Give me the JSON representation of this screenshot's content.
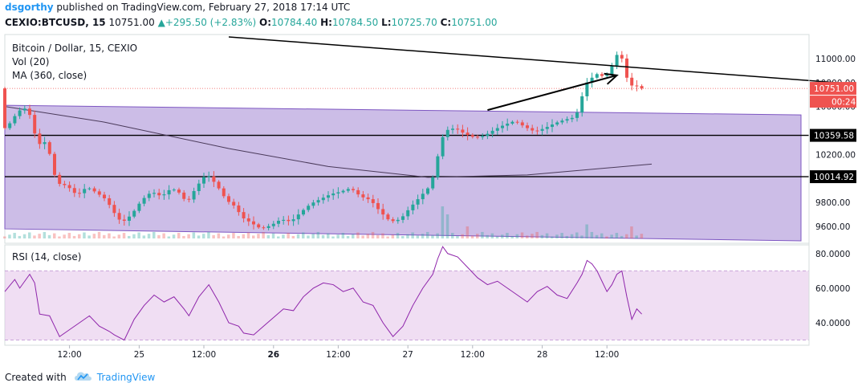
{
  "header": {
    "author": "dsgorthy",
    "published": "published on TradingView.com, February 27, 2018 17:14 UTC",
    "symbol": "CEXIO:BTCUSD, 15",
    "last": "10751.00",
    "change_arrow": "▲",
    "change": "+295.50 (+2.83%)",
    "o_label": "O:",
    "o": "10784.40",
    "h_label": "H:",
    "h": "10784.50",
    "l_label": "L:",
    "l": "10725.70",
    "c_label": "C:",
    "c": "10751.00"
  },
  "legend": {
    "main": "Bitcoin / Dollar, 15, CEXIO",
    "vol": "Vol (20)",
    "ma": "MA (360, close)",
    "rsi": "RSI (14, close)"
  },
  "footer": {
    "created_with": "Created with",
    "brand": "TradingView",
    "logo_icon": "tradingview-cloud-icon"
  },
  "colors": {
    "up": "#26a69a",
    "down": "#ef5350",
    "channel_fill": "#9575cd",
    "rsi_fill": "#e1bee7",
    "author": "#2196f3",
    "last_price_tag": "#ef5350"
  },
  "chart_data": {
    "type": "candlestick",
    "main_pane": {
      "y_ticks": [
        "11000.00",
        "10800.00",
        "10600.00",
        "10200.00",
        "9800.00",
        "9600.00"
      ],
      "y_range": [
        9460,
        11200
      ],
      "price_tags": [
        {
          "value": 10751.0,
          "label": "10751.00",
          "style": "last"
        },
        {
          "label": "00:24",
          "style": "countdown"
        },
        {
          "value": 10359.58,
          "label": "10359.58",
          "style": "level"
        },
        {
          "value": 10014.92,
          "label": "10014.92",
          "style": "level"
        }
      ],
      "horizontal_levels": [
        10359.58,
        10014.92
      ],
      "price_path": [
        [
          0,
          10400
        ],
        [
          2,
          10480
        ],
        [
          3,
          10560
        ],
        [
          5,
          10590
        ],
        [
          6,
          10470
        ],
        [
          7,
          10280
        ],
        [
          9,
          10310
        ],
        [
          10,
          10100
        ],
        [
          11,
          9960
        ],
        [
          13,
          9940
        ],
        [
          15,
          9860
        ],
        [
          17,
          9930
        ],
        [
          19,
          9880
        ],
        [
          21,
          9820
        ],
        [
          22,
          9740
        ],
        [
          24,
          9630
        ],
        [
          26,
          9700
        ],
        [
          28,
          9820
        ],
        [
          30,
          9890
        ],
        [
          32,
          9850
        ],
        [
          34,
          9920
        ],
        [
          36,
          9870
        ],
        [
          37,
          9790
        ],
        [
          39,
          9930
        ],
        [
          41,
          10040
        ],
        [
          43,
          9950
        ],
        [
          45,
          9820
        ],
        [
          47,
          9760
        ],
        [
          48,
          9680
        ],
        [
          50,
          9630
        ],
        [
          52,
          9580
        ],
        [
          54,
          9610
        ],
        [
          56,
          9660
        ],
        [
          58,
          9640
        ],
        [
          60,
          9720
        ],
        [
          62,
          9790
        ],
        [
          64,
          9830
        ],
        [
          66,
          9870
        ],
        [
          68,
          9890
        ],
        [
          70,
          9920
        ],
        [
          72,
          9850
        ],
        [
          74,
          9820
        ],
        [
          76,
          9720
        ],
        [
          78,
          9640
        ],
        [
          80,
          9660
        ],
        [
          82,
          9760
        ],
        [
          84,
          9850
        ],
        [
          86,
          9940
        ],
        [
          87,
          10080
        ],
        [
          88,
          10290
        ],
        [
          89,
          10400
        ],
        [
          91,
          10420
        ],
        [
          93,
          10370
        ],
        [
          95,
          10340
        ],
        [
          97,
          10360
        ],
        [
          99,
          10410
        ],
        [
          101,
          10450
        ],
        [
          103,
          10480
        ],
        [
          105,
          10430
        ],
        [
          107,
          10390
        ],
        [
          109,
          10420
        ],
        [
          111,
          10460
        ],
        [
          113,
          10490
        ],
        [
          115,
          10510
        ],
        [
          116,
          10590
        ],
        [
          117,
          10780
        ],
        [
          118,
          10820
        ],
        [
          119,
          10860
        ],
        [
          120,
          10880
        ],
        [
          121,
          10830
        ],
        [
          122,
          10900
        ],
        [
          123,
          10980
        ],
        [
          124,
          11080
        ],
        [
          125,
          10920
        ],
        [
          126,
          10760
        ],
        [
          127,
          10790
        ],
        [
          128,
          10751
        ]
      ],
      "channel": {
        "upper": [
          [
            0,
            10610
          ],
          [
            160,
            10530
          ]
        ],
        "lower": [
          [
            0,
            9580
          ],
          [
            160,
            9480
          ]
        ]
      },
      "ma_360": [
        [
          0,
          10600
        ],
        [
          20,
          10470
        ],
        [
          45,
          10250
        ],
        [
          65,
          10100
        ],
        [
          85,
          10010
        ],
        [
          105,
          10030
        ],
        [
          130,
          10120
        ]
      ],
      "trendlines": [
        {
          "from": [
            45,
            11180
          ],
          "to": [
            170,
            10790
          ]
        },
        {
          "from": [
            97,
            10570
          ],
          "to": [
            123,
            10860
          ]
        }
      ],
      "volume_spikes": [
        [
          88,
          0.8
        ],
        [
          89,
          0.6
        ],
        [
          93,
          0.3
        ],
        [
          117,
          0.35
        ],
        [
          126,
          0.3
        ]
      ]
    },
    "rsi_pane": {
      "y_ticks": [
        "80.0000",
        "60.0000",
        "40.0000"
      ],
      "y_range": [
        27,
        85
      ],
      "band": [
        30,
        70
      ],
      "series": [
        [
          0,
          58
        ],
        [
          2,
          65
        ],
        [
          3,
          60
        ],
        [
          5,
          68
        ],
        [
          6,
          63
        ],
        [
          7,
          45
        ],
        [
          9,
          44
        ],
        [
          10,
          38
        ],
        [
          11,
          32
        ],
        [
          13,
          36
        ],
        [
          15,
          40
        ],
        [
          17,
          44
        ],
        [
          19,
          38
        ],
        [
          21,
          35
        ],
        [
          22,
          33
        ],
        [
          24,
          30
        ],
        [
          26,
          42
        ],
        [
          28,
          50
        ],
        [
          30,
          56
        ],
        [
          32,
          52
        ],
        [
          34,
          55
        ],
        [
          36,
          48
        ],
        [
          37,
          44
        ],
        [
          39,
          55
        ],
        [
          41,
          62
        ],
        [
          43,
          52
        ],
        [
          45,
          40
        ],
        [
          47,
          38
        ],
        [
          48,
          34
        ],
        [
          50,
          33
        ],
        [
          52,
          38
        ],
        [
          54,
          43
        ],
        [
          56,
          48
        ],
        [
          58,
          47
        ],
        [
          60,
          55
        ],
        [
          62,
          60
        ],
        [
          64,
          63
        ],
        [
          66,
          62
        ],
        [
          68,
          58
        ],
        [
          70,
          60
        ],
        [
          72,
          52
        ],
        [
          74,
          50
        ],
        [
          76,
          40
        ],
        [
          78,
          32
        ],
        [
          80,
          38
        ],
        [
          82,
          50
        ],
        [
          84,
          60
        ],
        [
          86,
          68
        ],
        [
          87,
          77
        ],
        [
          88,
          84
        ],
        [
          89,
          80
        ],
        [
          91,
          78
        ],
        [
          93,
          72
        ],
        [
          95,
          66
        ],
        [
          97,
          62
        ],
        [
          99,
          64
        ],
        [
          101,
          60
        ],
        [
          103,
          56
        ],
        [
          105,
          52
        ],
        [
          107,
          58
        ],
        [
          109,
          61
        ],
        [
          111,
          56
        ],
        [
          113,
          54
        ],
        [
          115,
          63
        ],
        [
          116,
          68
        ],
        [
          117,
          76
        ],
        [
          118,
          74
        ],
        [
          119,
          70
        ],
        [
          120,
          64
        ],
        [
          121,
          58
        ],
        [
          122,
          62
        ],
        [
          123,
          68
        ],
        [
          124,
          70
        ],
        [
          125,
          55
        ],
        [
          126,
          42
        ],
        [
          127,
          48
        ],
        [
          128,
          45
        ]
      ]
    },
    "x_axis": {
      "tick_labels": [
        {
          "label": "12:00",
          "bar": 13,
          "bold": false
        },
        {
          "label": "25",
          "bar": 27,
          "bold": false
        },
        {
          "label": "12:00",
          "bar": 40,
          "bold": false
        },
        {
          "label": "26",
          "bar": 54,
          "bold": true
        },
        {
          "label": "12:00",
          "bar": 67,
          "bold": false
        },
        {
          "label": "27",
          "bar": 81,
          "bold": false
        },
        {
          "label": "12:00",
          "bar": 94,
          "bold": false
        },
        {
          "label": "28",
          "bar": 108,
          "bold": false
        },
        {
          "label": "12:00",
          "bar": 121,
          "bold": false
        }
      ]
    }
  }
}
